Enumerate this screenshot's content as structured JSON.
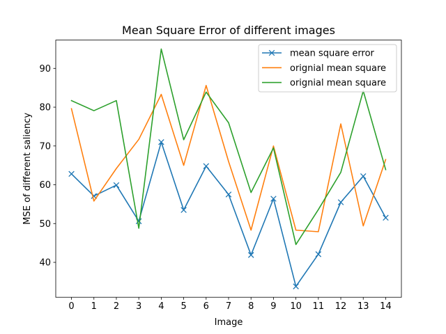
{
  "chart_data": {
    "type": "line",
    "title": "Mean Square Error of different images",
    "xlabel": "Image",
    "ylabel": "MSE of different saliency",
    "x": [
      0,
      1,
      2,
      3,
      4,
      5,
      6,
      7,
      8,
      9,
      10,
      11,
      12,
      13,
      14
    ],
    "xticks": [
      0,
      1,
      2,
      3,
      4,
      5,
      6,
      7,
      8,
      9,
      10,
      11,
      12,
      13,
      14
    ],
    "yticks": [
      40,
      50,
      60,
      70,
      80,
      90
    ],
    "xlim": [
      -0.7,
      14.7
    ],
    "ylim": [
      31.0,
      97.3
    ],
    "grid": false,
    "legend_position": "upper right",
    "series": [
      {
        "name": "mean square error",
        "color": "#1f77b4",
        "marker": "x",
        "values": [
          62.8,
          57.1,
          59.9,
          50.6,
          71.0,
          53.5,
          64.8,
          57.5,
          41.9,
          56.4,
          33.8,
          42.1,
          55.5,
          62.2,
          51.5
        ]
      },
      {
        "name": "orignial mean square",
        "color": "#ff7f0e",
        "marker": "none",
        "values": [
          79.6,
          55.8,
          64.2,
          71.7,
          83.3,
          65.0,
          85.6,
          66.0,
          48.3,
          70.0,
          48.3,
          47.9,
          75.7,
          49.4,
          66.5
        ]
      },
      {
        "name": "orignial mean square",
        "color": "#2ca02c",
        "marker": "none",
        "values": [
          81.7,
          79.1,
          81.7,
          48.8,
          95.0,
          71.6,
          83.9,
          76.0,
          58.0,
          69.5,
          44.6,
          53.6,
          63.2,
          84.2,
          63.9
        ]
      }
    ]
  }
}
